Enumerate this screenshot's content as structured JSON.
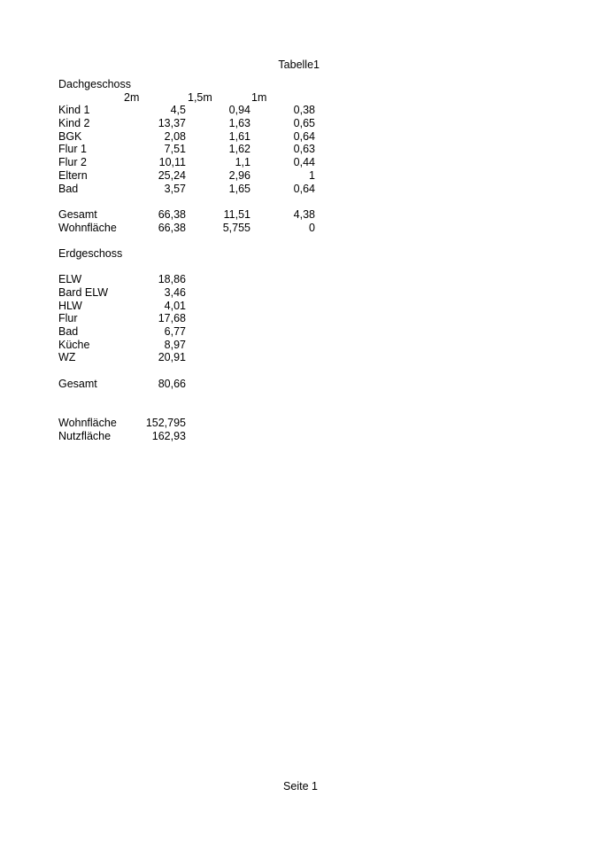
{
  "page_header": "Tabelle1",
  "page_footer": "Seite 1",
  "sections": {
    "dachgeschoss": {
      "title": "Dachgeschoss",
      "column_headers": [
        "2m",
        "1,5m",
        "1m"
      ],
      "rows": [
        [
          "Kind 1",
          "4,5",
          "0,94",
          "0,38"
        ],
        [
          "Kind 2",
          "13,37",
          "1,63",
          "0,65"
        ],
        [
          "BGK",
          "2,08",
          "1,61",
          "0,64"
        ],
        [
          "Flur 1",
          "7,51",
          "1,62",
          "0,63"
        ],
        [
          "Flur 2",
          "10,11",
          "1,1",
          "0,44"
        ],
        [
          "Eltern",
          "25,24",
          "2,96",
          "1"
        ],
        [
          "Bad",
          "3,57",
          "1,65",
          "0,64"
        ]
      ],
      "totals": [
        [
          "Gesamt",
          "66,38",
          "11,51",
          "4,38"
        ],
        [
          "Wohnfläche",
          "66,38",
          "5,755",
          "0"
        ]
      ]
    },
    "erdgeschoss": {
      "title": "Erdgeschoss",
      "rows": [
        [
          "ELW",
          "18,86"
        ],
        [
          "Bard ELW",
          "3,46"
        ],
        [
          "HLW",
          "4,01"
        ],
        [
          "Flur",
          "17,68"
        ],
        [
          "Bad",
          "6,77"
        ],
        [
          "Küche",
          "8,97"
        ],
        [
          "WZ",
          "20,91"
        ]
      ],
      "totals": [
        [
          "Gesamt",
          "80,66"
        ]
      ]
    },
    "summary": [
      [
        "Wohnfläche",
        "152,795"
      ],
      [
        "Nutzfläche",
        "162,93"
      ]
    ]
  }
}
